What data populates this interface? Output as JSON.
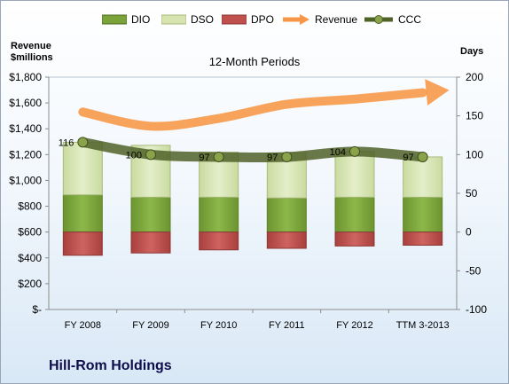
{
  "company_name": "Hill-Rom Holdings",
  "chart_data": {
    "type": "bar",
    "subtitle": "12-Month Periods",
    "y_left_label_line1": "Revenue",
    "y_left_label_line2": "$millions",
    "y_right_label": "Days",
    "categories": [
      "FY 2008",
      "FY 2009",
      "FY 2010",
      "FY 2011",
      "FY 2012",
      "TTM 3-2013"
    ],
    "y_left_ticks": [
      "$-",
      "$200",
      "$400",
      "$600",
      "$800",
      "$1,000",
      "$1,200",
      "$1,400",
      "$1,600",
      "$1,800"
    ],
    "y_right_ticks": [
      "-100",
      "-50",
      "0",
      "50",
      "100",
      "150",
      "200"
    ],
    "y_left_range": [
      0,
      1800
    ],
    "y_right_range": [
      -100,
      200
    ],
    "legend_position": "top",
    "grid": false,
    "series": [
      {
        "name": "DIO",
        "axis": "right",
        "color": "#7aa33a",
        "values": [
          48,
          45,
          45,
          44,
          45,
          45
        ]
      },
      {
        "name": "DSO",
        "axis": "right",
        "color": "#d7e4b0",
        "values": [
          68,
          67,
          58,
          58,
          59,
          52
        ]
      },
      {
        "name": "DPO",
        "axis": "right",
        "color": "#c0504d",
        "values": [
          -30,
          -27,
          -23,
          -21,
          -18,
          -17
        ]
      },
      {
        "name": "Revenue",
        "axis": "left",
        "color": "#f79646",
        "values": [
          1530,
          1420,
          1480,
          1590,
          1630,
          1680
        ]
      },
      {
        "name": "CCC",
        "axis": "right",
        "color": "#4f6228",
        "values": [
          116,
          100,
          97,
          97,
          104,
          97
        ],
        "labels": [
          "116",
          "100",
          "97",
          "97",
          "104",
          "97"
        ]
      }
    ]
  }
}
